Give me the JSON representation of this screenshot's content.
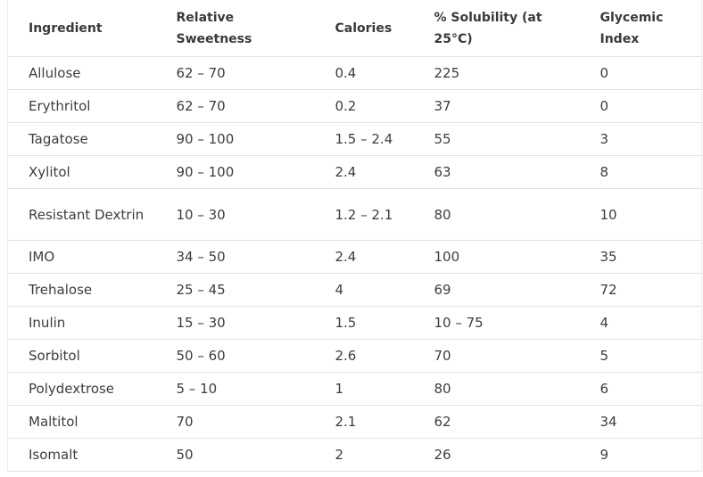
{
  "table": {
    "headers": [
      "Ingredient",
      "Relative Sweetness",
      "Calories",
      "% Solubility (at 25°C)",
      "Glycemic Index"
    ],
    "rows": [
      [
        "Allulose",
        "62 – 70",
        "0.4",
        "225",
        "0"
      ],
      [
        "Erythritol",
        "62 – 70",
        "0.2",
        "37",
        "0"
      ],
      [
        "Tagatose",
        "90 – 100",
        "1.5 – 2.4",
        "55",
        "3"
      ],
      [
        "Xylitol",
        "90 – 100",
        "2.4",
        "63",
        "8"
      ],
      [
        "Resistant Dextrin",
        "10 – 30",
        "1.2 – 2.1",
        "80",
        "10"
      ],
      [
        "IMO",
        "34 – 50",
        "2.4",
        "100",
        "35"
      ],
      [
        "Trehalose",
        "25 – 45",
        "4",
        "69",
        "72"
      ],
      [
        "Inulin",
        "15 – 30",
        "1.5",
        "10 – 75",
        "4"
      ],
      [
        "Sorbitol",
        "50 – 60",
        "2.6",
        "70",
        "5"
      ],
      [
        "Polydextrose",
        "5 – 10",
        "1",
        "80",
        "6"
      ],
      [
        "Maltitol",
        "70",
        "2.1",
        "62",
        "34"
      ],
      [
        "Isomalt",
        "50",
        "2",
        "26",
        "9"
      ]
    ]
  }
}
